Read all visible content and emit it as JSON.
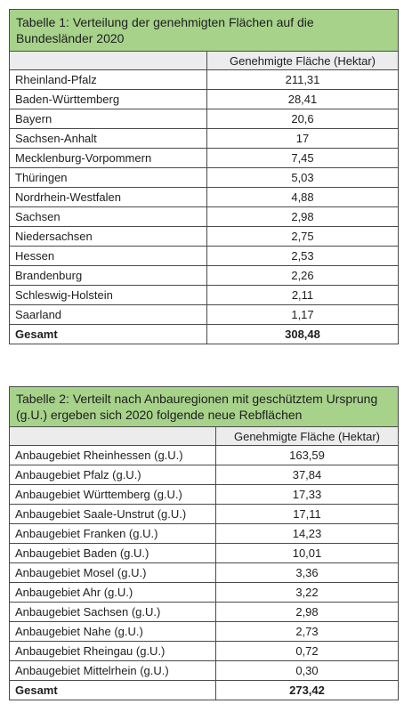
{
  "table1": {
    "title": "Tabelle 1: Verteilung der genehmigten Flächen auf die Bundesländer 2020",
    "header_left": "",
    "header_right": "Genehmigte Fläche (Hektar)",
    "rows": [
      {
        "label": "Rheinland-Pfalz",
        "value": "211,31"
      },
      {
        "label": "Baden-Württemberg",
        "value": "28,41"
      },
      {
        "label": "Bayern",
        "value": "20,6"
      },
      {
        "label": "Sachsen-Anhalt",
        "value": "17"
      },
      {
        "label": "Mecklenburg-Vorpommern",
        "value": "7,45"
      },
      {
        "label": "Thüringen",
        "value": "5,03"
      },
      {
        "label": "Nordrhein-Westfalen",
        "value": "4,88"
      },
      {
        "label": "Sachsen",
        "value": "2,98"
      },
      {
        "label": "Niedersachsen",
        "value": "2,75"
      },
      {
        "label": "Hessen",
        "value": "2,53"
      },
      {
        "label": "Brandenburg",
        "value": "2,26"
      },
      {
        "label": "Schleswig-Holstein",
        "value": "2,11"
      },
      {
        "label": "Saarland",
        "value": "1,17"
      }
    ],
    "total_label": "Gesamt",
    "total_value": "308,48"
  },
  "table2": {
    "title": "Tabelle 2: Verteilt nach Anbauregionen mit geschütztem Ursprung (g.U.) ergeben sich 2020 folgende neue Rebflächen",
    "header_left": "",
    "header_right": "Genehmigte Fläche (Hektar)",
    "rows": [
      {
        "label": "Anbaugebiet Rheinhessen (g.U.)",
        "value": "163,59"
      },
      {
        "label": "Anbaugebiet Pfalz (g.U.)",
        "value": "37,84"
      },
      {
        "label": "Anbaugebiet Württemberg (g.U.)",
        "value": "17,33"
      },
      {
        "label": "Anbaugebiet Saale-Unstrut (g.U.)",
        "value": "17,11"
      },
      {
        "label": "Anbaugebiet Franken (g.U.)",
        "value": "14,23"
      },
      {
        "label": "Anbaugebiet Baden (g.U.)",
        "value": "10,01"
      },
      {
        "label": "Anbaugebiet Mosel (g.U.)",
        "value": "3,36"
      },
      {
        "label": "Anbaugebiet Ahr (g.U.)",
        "value": "3,22"
      },
      {
        "label": "Anbaugebiet Sachsen (g.U.)",
        "value": "2,98"
      },
      {
        "label": "Anbaugebiet Nahe (g.U.)",
        "value": "2,73"
      },
      {
        "label": "Anbaugebiet Rheingau (g.U.)",
        "value": "0,72"
      },
      {
        "label": "Anbaugebiet Mittelrhein (g.U.)",
        "value": "0,30"
      }
    ],
    "total_label": "Gesamt",
    "total_value": "273,42"
  },
  "colors": {
    "title_background": "#a6d28a",
    "header_background": "#ececec",
    "border": "#4a4a4a"
  }
}
